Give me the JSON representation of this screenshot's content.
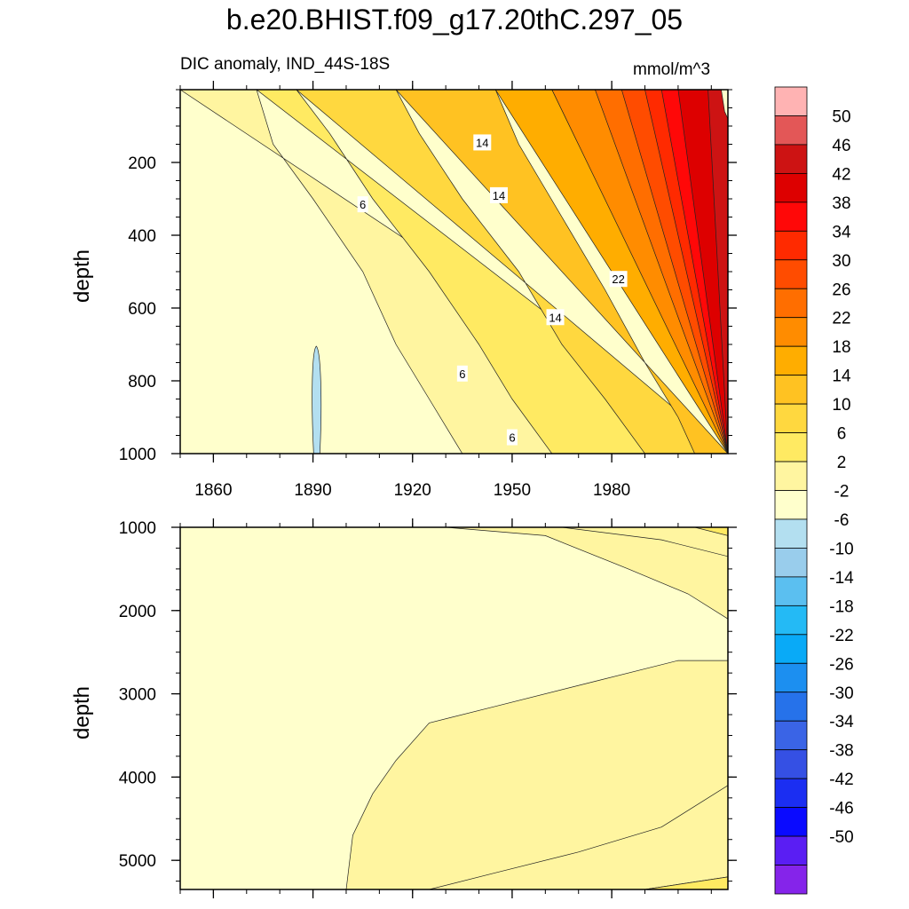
{
  "title": "b.e20.BHIST.f09_g17.20thC.297_05",
  "chart_data": {
    "type": "heatmap",
    "variable": "DIC anomaly, IND_44S-18S",
    "units": "mmol/m^3",
    "xlim": [
      1850,
      2015
    ],
    "x_ticks": [
      {
        "value": 1860,
        "label": "1860"
      },
      {
        "value": 1890,
        "label": "1890"
      },
      {
        "value": 1920,
        "label": "1920"
      },
      {
        "value": 1950,
        "label": "1950"
      },
      {
        "value": 1980,
        "label": "1980"
      }
    ],
    "panels": [
      {
        "name": "upper",
        "ylabel": "depth",
        "ylim": [
          0,
          1000
        ],
        "y_ticks": [
          {
            "value": 200,
            "label": "200"
          },
          {
            "value": 400,
            "label": "400"
          },
          {
            "value": 600,
            "label": "600"
          },
          {
            "value": 800,
            "label": "800"
          },
          {
            "value": 1000,
            "label": "1000"
          }
        ],
        "contour_bands": [
          {
            "level": 2,
            "boundary": [
              [
                1850,
                0
              ],
              [
                1873,
                0
              ],
              [
                1878,
                150
              ],
              [
                1890,
                300
              ],
              [
                1905,
                500
              ],
              [
                1915,
                700
              ],
              [
                1925,
                850
              ],
              [
                1935,
                1000
              ]
            ]
          },
          {
            "level": 6,
            "boundary": [
              [
                1873,
                0
              ],
              [
                1885,
                0
              ],
              [
                1895,
                120
              ],
              [
                1908,
                300
              ],
              [
                1925,
                500
              ],
              [
                1940,
                700
              ],
              [
                1950,
                850
              ],
              [
                1962,
                1000
              ]
            ]
          },
          {
            "level": 10,
            "boundary": [
              [
                1885,
                0
              ],
              [
                1915,
                0
              ],
              [
                1922,
                120
              ],
              [
                1935,
                300
              ],
              [
                1952,
                500
              ],
              [
                1965,
                700
              ],
              [
                1978,
                850
              ],
              [
                1990,
                1000
              ]
            ]
          },
          {
            "level": 14,
            "boundary": [
              [
                1915,
                0
              ],
              [
                1945,
                0
              ],
              [
                1952,
                150
              ],
              [
                1965,
                350
              ],
              [
                1978,
                550
              ],
              [
                1990,
                750
              ],
              [
                2000,
                900
              ],
              [
                2005,
                1000
              ]
            ]
          },
          {
            "level": 18,
            "boundary": [
              [
                1945,
                0
              ],
              [
                1962,
                0
              ],
              [
                1970,
                150
              ],
              [
                1982,
                350
              ],
              [
                1992,
                550
              ],
              [
                2000,
                700
              ],
              [
                2008,
                850
              ],
              [
                2015,
                950
              ]
            ]
          },
          {
            "level": 22,
            "boundary": [
              [
                1962,
                0
              ],
              [
                1975,
                0
              ],
              [
                1983,
                150
              ],
              [
                1993,
                350
              ],
              [
                2002,
                530
              ],
              [
                2010,
                650
              ],
              [
                2015,
                700
              ]
            ]
          },
          {
            "level": 26,
            "boundary": [
              [
                1975,
                0
              ],
              [
                1983,
                0
              ],
              [
                1990,
                150
              ],
              [
                1999,
                330
              ],
              [
                2008,
                480
              ],
              [
                2015,
                540
              ]
            ]
          },
          {
            "level": 30,
            "boundary": [
              [
                1983,
                0
              ],
              [
                1990,
                0
              ],
              [
                1996,
                130
              ],
              [
                2004,
                280
              ],
              [
                2012,
                380
              ],
              [
                2015,
                410
              ]
            ]
          },
          {
            "level": 34,
            "boundary": [
              [
                1990,
                0
              ],
              [
                1995,
                0
              ],
              [
                2001,
                120
              ],
              [
                2009,
                230
              ],
              [
                2015,
                280
              ]
            ]
          },
          {
            "level": 38,
            "boundary": [
              [
                1995,
                0
              ],
              [
                2000,
                0
              ],
              [
                2005,
                100
              ],
              [
                2012,
                180
              ],
              [
                2015,
                210
              ]
            ]
          },
          {
            "level": 42,
            "boundary": [
              [
                2000,
                0
              ],
              [
                2010,
                0
              ],
              [
                2012,
                60
              ],
              [
                2015,
                100
              ]
            ]
          },
          {
            "level": 46,
            "boundary": [
              [
                2009,
                0
              ],
              [
                2013,
                0
              ],
              [
                2014,
                60
              ],
              [
                2015,
                80
              ]
            ]
          }
        ],
        "negative_patches": [
          {
            "level": -2,
            "x": 1891,
            "y_top": 705,
            "y_bottom": 1000
          }
        ],
        "contour_labels": [
          {
            "text": "6",
            "x": 1905,
            "y": 315
          },
          {
            "text": "6",
            "x": 1935,
            "y": 780
          },
          {
            "text": "6",
            "x": 1950,
            "y": 955
          },
          {
            "text": "14",
            "x": 1941,
            "y": 145
          },
          {
            "text": "14",
            "x": 1946,
            "y": 290
          },
          {
            "text": "14",
            "x": 1963,
            "y": 625
          },
          {
            "text": "22",
            "x": 1982,
            "y": 520
          }
        ]
      },
      {
        "name": "lower",
        "ylabel": "depth",
        "ylim": [
          1000,
          5350
        ],
        "y_ticks": [
          {
            "value": 1000,
            "label": "1000"
          },
          {
            "value": 2000,
            "label": "2000"
          },
          {
            "value": 3000,
            "label": "3000"
          },
          {
            "value": 4000,
            "label": "4000"
          },
          {
            "value": 5000,
            "label": "5000"
          }
        ],
        "background_level": 2,
        "regions": [
          {
            "level": -2,
            "outline": [
              [
                1892,
                1000
              ],
              [
                1930,
                1000
              ],
              [
                1960,
                1100
              ],
              [
                1985,
                1500
              ],
              [
                2003,
                1800
              ],
              [
                2015,
                2100
              ],
              [
                2015,
                2600
              ],
              [
                2000,
                2600
              ],
              [
                1975,
                2850
              ],
              [
                1945,
                3150
              ],
              [
                1925,
                3350
              ],
              [
                1915,
                3800
              ],
              [
                1908,
                4200
              ],
              [
                1902,
                4700
              ],
              [
                1900,
                5350
              ],
              [
                1850,
                5350
              ],
              [
                1850,
                1000
              ]
            ]
          },
          {
            "level": 2,
            "outline": [
              [
                1965,
                1000
              ],
              [
                2015,
                1000
              ],
              [
                2015,
                1350
              ],
              [
                1995,
                1150
              ]
            ]
          },
          {
            "level": 2,
            "outline": [
              [
                1990,
                5350
              ],
              [
                2015,
                5200
              ],
              [
                2015,
                4100
              ],
              [
                1995,
                4600
              ],
              [
                1970,
                4900
              ],
              [
                1945,
                5150
              ],
              [
                1925,
                5350
              ]
            ]
          },
          {
            "level": 6,
            "outline": [
              [
                2005,
                1000
              ],
              [
                2015,
                1000
              ],
              [
                2015,
                1100
              ]
            ]
          },
          {
            "level": 6,
            "outline": [
              [
                1990,
                5350
              ],
              [
                2015,
                5350
              ],
              [
                2015,
                5200
              ]
            ]
          }
        ]
      }
    ],
    "colorbar": {
      "levels": [
        "50",
        "46",
        "42",
        "38",
        "34",
        "30",
        "26",
        "22",
        "18",
        "14",
        "10",
        "6",
        "2",
        "-2",
        "-6",
        "-10",
        "-14",
        "-18",
        "-22",
        "-26",
        "-30",
        "-34",
        "-38",
        "-42",
        "-46",
        "-50"
      ],
      "colors": [
        "#ffb3b3",
        "#e35757",
        "#cd1313",
        "#dd0000",
        "#ff0808",
        "#ff2a00",
        "#ff4c00",
        "#ff6e00",
        "#ff8c00",
        "#ffad00",
        "#ffc222",
        "#ffd83f",
        "#ffea62",
        "#fff5a0",
        "#ffffcc",
        "#b3dff0",
        "#99cdec",
        "#5bbff0",
        "#24baf5",
        "#09aaf7",
        "#1c8ff0",
        "#2672ea",
        "#3a64e6",
        "#3550e4",
        "#1b2ef2",
        "#0a0aff",
        "#5a1ef3",
        "#8524ea"
      ]
    }
  }
}
